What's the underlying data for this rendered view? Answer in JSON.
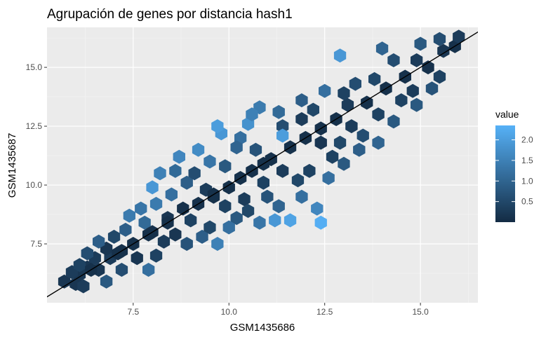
{
  "chart_data": {
    "type": "hexbin",
    "title": "Agrupación de genes por distancia hash1",
    "xlabel": "GSM1435686",
    "ylabel": "GSM1435687",
    "xlim": [
      5.25,
      16.5
    ],
    "ylim": [
      5.0,
      16.7
    ],
    "x_ticks": [
      {
        "value": 7.5,
        "label": "7.5"
      },
      {
        "value": 10.0,
        "label": "10.0"
      },
      {
        "value": 12.5,
        "label": "12.5"
      },
      {
        "value": 15.0,
        "label": "15.0"
      }
    ],
    "y_ticks": [
      {
        "value": 7.5,
        "label": "7.5"
      },
      {
        "value": 10.0,
        "label": "10.0"
      },
      {
        "value": 12.5,
        "label": "12.5"
      },
      {
        "value": 15.0,
        "label": "15.0"
      }
    ],
    "grid": true,
    "reference_line": {
      "slope": 1,
      "intercept": 0,
      "color": "#000000"
    },
    "legend": {
      "title": "value",
      "position": "right",
      "range": [
        0.0,
        2.35
      ],
      "ticks": [
        {
          "value": 2.0,
          "label": "2.0"
        },
        {
          "value": 1.5,
          "label": "1.5"
        },
        {
          "value": 1.0,
          "label": "1.0"
        },
        {
          "value": 0.5,
          "label": "0.5"
        }
      ],
      "low_color": "#132b43",
      "high_color": "#56b1f7"
    },
    "colors": {
      "panel_bg": "#ebebeb",
      "grid_major": "#ffffff",
      "grid_minor": "#f5f5f5"
    },
    "hex_cells": [
      [
        5.7,
        5.9,
        0.2
      ],
      [
        6.0,
        5.8,
        0.2
      ],
      [
        6.2,
        5.7,
        0.3
      ],
      [
        6.1,
        6.2,
        0.2
      ],
      [
        5.9,
        6.3,
        0.3
      ],
      [
        6.3,
        6.5,
        0.2
      ],
      [
        6.6,
        6.4,
        0.2
      ],
      [
        6.1,
        6.6,
        0.4
      ],
      [
        6.5,
        6.9,
        0.3
      ],
      [
        6.9,
        6.9,
        0.3
      ],
      [
        6.8,
        7.3,
        0.2
      ],
      [
        6.3,
        7.1,
        0.6
      ],
      [
        7.2,
        7.2,
        0.1
      ],
      [
        7.0,
        7.8,
        0.5
      ],
      [
        6.6,
        7.6,
        0.9
      ],
      [
        7.5,
        7.5,
        0.1
      ],
      [
        6.8,
        5.9,
        0.8
      ],
      [
        7.2,
        6.4,
        0.6
      ],
      [
        7.6,
        6.9,
        0.2
      ],
      [
        7.9,
        6.4,
        1.2
      ],
      [
        8.1,
        7.0,
        0.4
      ],
      [
        7.3,
        8.1,
        0.9
      ],
      [
        7.8,
        8.4,
        1.1
      ],
      [
        8.0,
        8.0,
        0.1
      ],
      [
        8.3,
        7.6,
        0.3
      ],
      [
        8.6,
        7.9,
        0.2
      ],
      [
        7.7,
        9.0,
        1.3
      ],
      [
        8.1,
        9.2,
        1.4
      ],
      [
        8.4,
        8.6,
        0.2
      ],
      [
        8.8,
        9.0,
        0.1
      ],
      [
        9.0,
        8.5,
        0.4
      ],
      [
        8.9,
        7.5,
        0.7
      ],
      [
        9.3,
        7.8,
        0.9
      ],
      [
        9.5,
        8.2,
        0.5
      ],
      [
        9.2,
        9.2,
        0.1
      ],
      [
        8.5,
        9.6,
        1.2
      ],
      [
        8.0,
        9.9,
        1.9
      ],
      [
        8.9,
        10.1,
        0.9
      ],
      [
        9.4,
        9.8,
        0.3
      ],
      [
        9.6,
        9.5,
        0.1
      ],
      [
        10.0,
        9.9,
        0.1
      ],
      [
        9.9,
        9.1,
        0.4
      ],
      [
        10.2,
        8.6,
        0.8
      ],
      [
        10.5,
        8.9,
        0.5
      ],
      [
        10.0,
        8.2,
        1.2
      ],
      [
        9.7,
        7.5,
        1.5
      ],
      [
        10.3,
        10.3,
        0.1
      ],
      [
        9.9,
        10.8,
        0.8
      ],
      [
        9.5,
        11.0,
        1.3
      ],
      [
        9.2,
        11.5,
        1.7
      ],
      [
        8.7,
        11.2,
        1.6
      ],
      [
        10.6,
        10.6,
        0.1
      ],
      [
        10.9,
        10.1,
        0.4
      ],
      [
        11.0,
        9.5,
        0.7
      ],
      [
        11.3,
        9.1,
        1.0
      ],
      [
        10.8,
        8.4,
        1.3
      ],
      [
        11.2,
        8.5,
        1.9
      ],
      [
        11.6,
        8.5,
        2.1
      ],
      [
        10.7,
        11.5,
        0.7
      ],
      [
        10.3,
        12.0,
        1.2
      ],
      [
        9.8,
        12.2,
        1.9
      ],
      [
        10.5,
        12.6,
        1.8
      ],
      [
        11.1,
        11.1,
        0.1
      ],
      [
        11.4,
        10.6,
        0.3
      ],
      [
        11.8,
        10.2,
        0.5
      ],
      [
        11.9,
        9.5,
        1.2
      ],
      [
        12.3,
        9.0,
        1.6
      ],
      [
        12.4,
        8.4,
        2.3
      ],
      [
        12.0,
        12.0,
        0.1
      ],
      [
        11.4,
        12.5,
        0.6
      ],
      [
        11.3,
        13.1,
        1.1
      ],
      [
        10.8,
        13.3,
        1.4
      ],
      [
        11.9,
        13.6,
        0.9
      ],
      [
        12.4,
        11.8,
        0.2
      ],
      [
        12.7,
        11.2,
        0.4
      ],
      [
        13.0,
        10.9,
        0.8
      ],
      [
        12.6,
        10.3,
        1.2
      ],
      [
        12.4,
        12.4,
        0.1
      ],
      [
        12.8,
        12.8,
        0.1
      ],
      [
        13.2,
        12.5,
        0.3
      ],
      [
        13.5,
        12.1,
        0.6
      ],
      [
        13.9,
        11.8,
        1.0
      ],
      [
        12.2,
        13.2,
        0.5
      ],
      [
        12.5,
        14.0,
        1.2
      ],
      [
        13.1,
        13.4,
        0.3
      ],
      [
        13.6,
        13.5,
        0.1
      ],
      [
        13.9,
        13.0,
        0.4
      ],
      [
        14.3,
        12.7,
        0.8
      ],
      [
        13.3,
        14.3,
        0.6
      ],
      [
        13.8,
        14.5,
        0.5
      ],
      [
        14.1,
        14.1,
        0.1
      ],
      [
        14.5,
        13.6,
        0.4
      ],
      [
        14.9,
        13.4,
        0.8
      ],
      [
        14.6,
        14.6,
        0.1
      ],
      [
        14.3,
        15.3,
        0.6
      ],
      [
        14.9,
        15.3,
        0.3
      ],
      [
        15.2,
        15.0,
        0.1
      ],
      [
        15.5,
        14.6,
        0.4
      ],
      [
        15.0,
        16.0,
        0.8
      ],
      [
        15.6,
        15.7,
        0.2
      ],
      [
        15.9,
        15.9,
        0.1
      ],
      [
        16.0,
        16.3,
        0.3
      ],
      [
        15.5,
        16.2,
        0.6
      ],
      [
        14.0,
        15.8,
        1.0
      ],
      [
        12.9,
        15.5,
        1.9
      ],
      [
        11.4,
        12.1,
        2.0
      ],
      [
        11.6,
        11.6,
        0.1
      ],
      [
        10.9,
        10.9,
        0.1
      ],
      [
        9.6,
        9.6,
        0.1
      ],
      [
        8.4,
        8.4,
        0.1
      ],
      [
        7.9,
        7.9,
        0.1
      ],
      [
        7.1,
        7.1,
        0.1
      ],
      [
        6.4,
        6.4,
        0.1
      ],
      [
        9.1,
        10.5,
        0.6
      ],
      [
        10.4,
        9.4,
        0.3
      ],
      [
        12.1,
        10.6,
        0.4
      ],
      [
        13.4,
        11.5,
        0.9
      ],
      [
        8.2,
        10.5,
        1.5
      ],
      [
        7.4,
        8.7,
        1.4
      ],
      [
        9.7,
        12.5,
        2.0
      ],
      [
        10.2,
        11.6,
        1.0
      ],
      [
        11.9,
        12.8,
        0.3
      ],
      [
        10.6,
        13.0,
        1.5
      ],
      [
        15.3,
        14.1,
        0.7
      ],
      [
        14.8,
        14.0,
        0.3
      ],
      [
        13.0,
        13.9,
        0.4
      ],
      [
        8.6,
        10.6,
        1.1
      ],
      [
        12.9,
        11.8,
        0.5
      ]
    ]
  }
}
